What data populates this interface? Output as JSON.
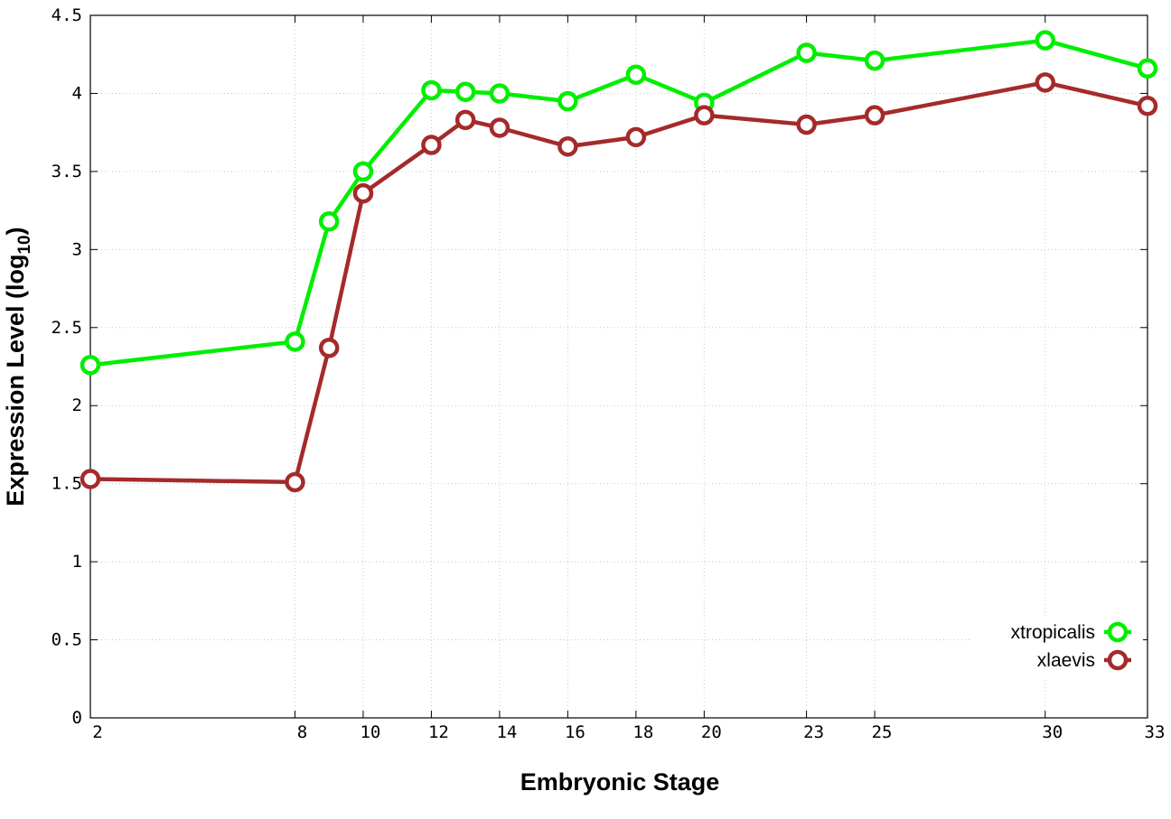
{
  "chart_data": {
    "type": "line",
    "title": "",
    "xlabel": "Embryonic Stage",
    "ylabel": "Expression Level (log",
    "ylabel_sub": "10",
    "ylabel_close": ")",
    "x": [
      2,
      8,
      9,
      10,
      12,
      13,
      14,
      16,
      18,
      20,
      23,
      25,
      30,
      33
    ],
    "xticks": [
      2,
      8,
      10,
      12,
      14,
      16,
      18,
      20,
      23,
      25,
      30,
      33
    ],
    "xlim": [
      2,
      33
    ],
    "ylim": [
      0,
      4.5
    ],
    "yticks": [
      "0",
      "0.5",
      "1",
      "1.5",
      "2",
      "2.5",
      "3",
      "3.5",
      "4",
      "4.5"
    ],
    "grid": true,
    "legend_position": "bottom-right",
    "series": [
      {
        "name": "xtropicalis",
        "color": "#00ee00",
        "values": [
          2.26,
          2.41,
          3.18,
          3.5,
          4.02,
          4.01,
          4.0,
          3.95,
          4.12,
          3.94,
          4.26,
          4.21,
          4.34,
          4.16
        ]
      },
      {
        "name": "xlaevis",
        "color": "#a52a2a",
        "values": [
          1.53,
          1.51,
          2.37,
          3.36,
          3.67,
          3.83,
          3.78,
          3.66,
          3.72,
          3.86,
          3.8,
          3.86,
          4.07,
          3.92
        ]
      }
    ]
  }
}
